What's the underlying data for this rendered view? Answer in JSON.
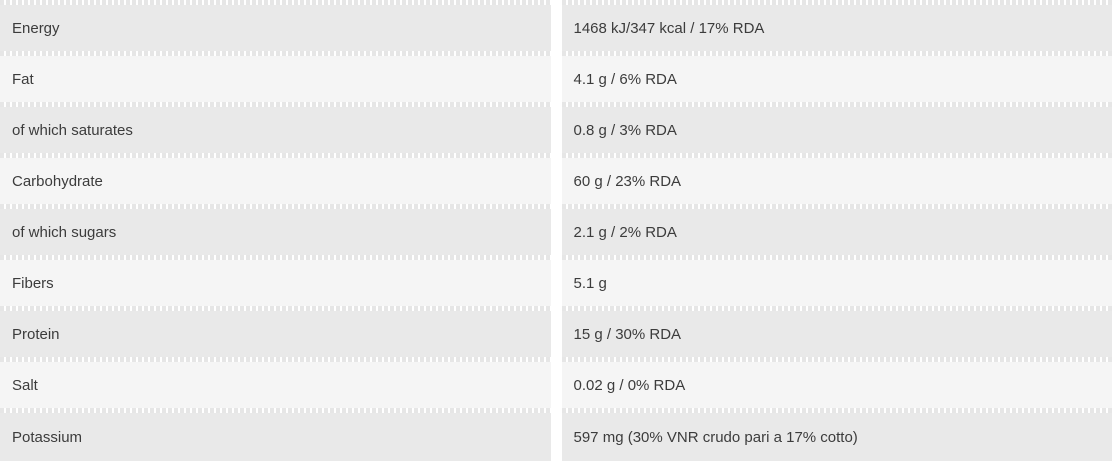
{
  "table": {
    "title": "nutrition-facts",
    "rows": [
      {
        "label": "Energy",
        "value": "1468 kJ/347 kcal / 17% RDA"
      },
      {
        "label": "Fat",
        "value": "4.1 g / 6% RDA"
      },
      {
        "label": "of which saturates",
        "value": "0.8 g / 3% RDA"
      },
      {
        "label": "Carbohydrate",
        "value": "60 g / 23% RDA"
      },
      {
        "label": "of which sugars",
        "value": "2.1 g / 2% RDA"
      },
      {
        "label": "Fibers",
        "value": "5.1 g"
      },
      {
        "label": "Protein",
        "value": "15 g / 30% RDA"
      },
      {
        "label": "Salt",
        "value": "0.02 g / 0% RDA"
      },
      {
        "label": "Potassium",
        "value": "597 mg (30% VNR crudo pari a 17% cotto)"
      }
    ],
    "colors": {
      "row_odd_bg": "#e9e9e9",
      "row_even_bg": "#f5f5f5",
      "dash": "#e6e6e6",
      "text": "#3c3c3c",
      "background": "#ffffff"
    }
  }
}
